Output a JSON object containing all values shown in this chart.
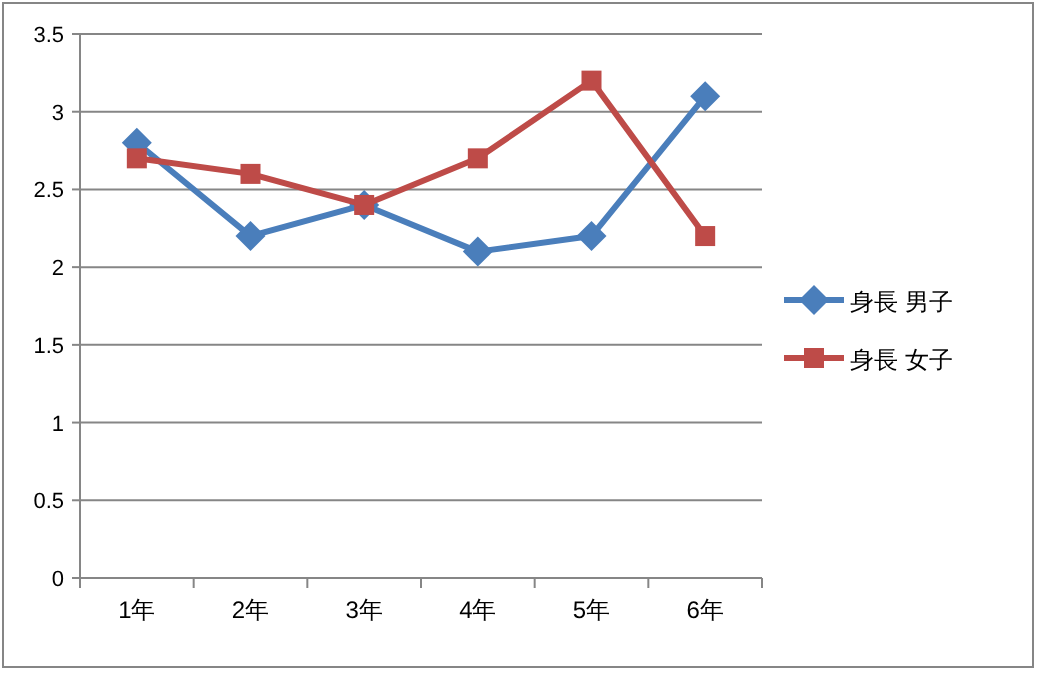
{
  "chart_data": {
    "type": "line",
    "categories": [
      "1年",
      "2年",
      "3年",
      "4年",
      "5年",
      "6年"
    ],
    "series": [
      {
        "name": "身長 男子",
        "color": "#4a7ebb",
        "marker": "diamond",
        "values": [
          2.8,
          2.2,
          2.4,
          2.1,
          2.2,
          3.1
        ]
      },
      {
        "name": "身長 女子",
        "color": "#be4b48",
        "marker": "square",
        "values": [
          2.7,
          2.6,
          2.4,
          2.7,
          3.2,
          2.2
        ]
      }
    ],
    "ylim": [
      0,
      3.5
    ],
    "yticks": [
      0,
      0.5,
      1,
      1.5,
      2,
      2.5,
      3,
      3.5
    ],
    "grid": "y",
    "legend": "right"
  }
}
